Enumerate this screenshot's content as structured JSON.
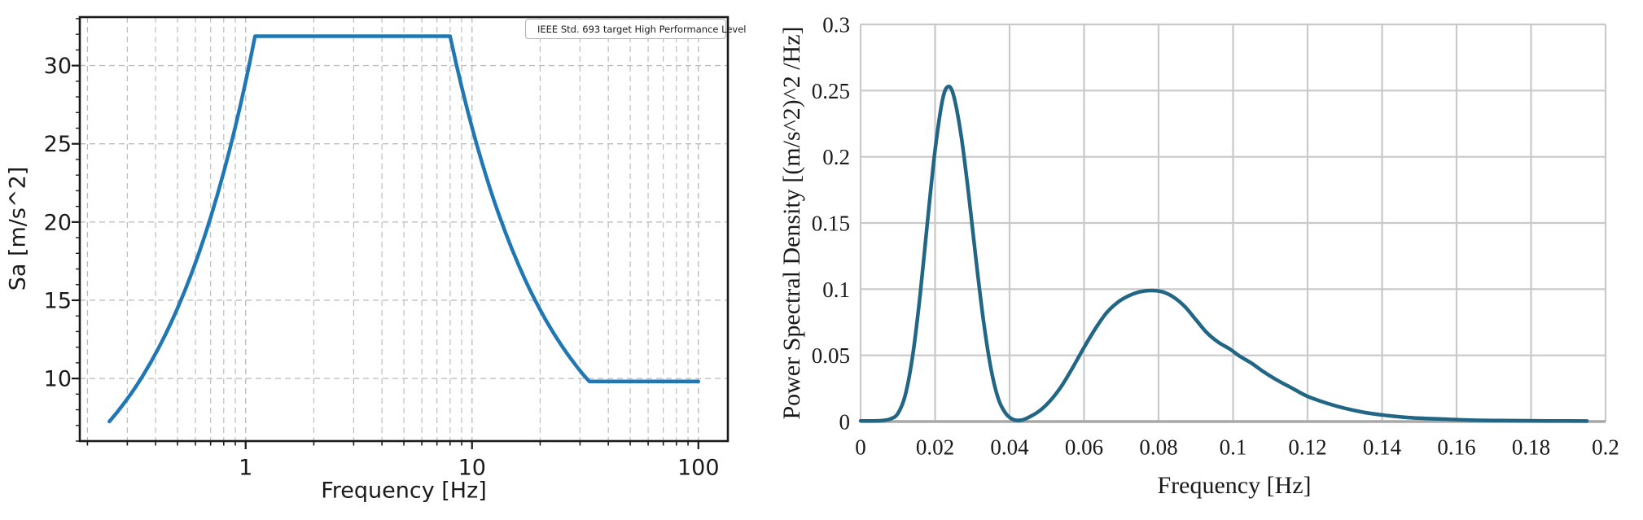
{
  "page": {
    "background": "#ffffff"
  },
  "chart_data": [
    {
      "type": "line",
      "title": "",
      "xlabel": "Frequency [Hz]",
      "ylabel": "Sa [m/s^2]",
      "x_scale": "log",
      "xlim": [
        0.185,
        135
      ],
      "ylim": [
        6.0,
        33.1
      ],
      "grid": "dashed",
      "grid_color": "#bdbdbd",
      "spine_color": "#1a1a1a",
      "legend_position": "upper-right",
      "x_major_ticks": [
        {
          "v": 1,
          "label": "1"
        },
        {
          "v": 10,
          "label": "10"
        },
        {
          "v": 100,
          "label": "100"
        }
      ],
      "x_minor_ticks": [
        0.2,
        0.3,
        0.4,
        0.5,
        0.6,
        0.7,
        0.8,
        0.9,
        2,
        3,
        4,
        5,
        6,
        7,
        8,
        9,
        20,
        30,
        40,
        50,
        60,
        70,
        80,
        90
      ],
      "y_ticks": [
        {
          "v": 10,
          "label": "10"
        },
        {
          "v": 15,
          "label": "15"
        },
        {
          "v": 20,
          "label": "20"
        },
        {
          "v": 25,
          "label": "25"
        },
        {
          "v": 30,
          "label": "30"
        }
      ],
      "y_minor_step": 1,
      "series": [
        {
          "name": "IEEE Std. 693 target High Performance Level",
          "color": "#1f77b4",
          "width": 4.5,
          "smooth": false,
          "points": [
            [
              0.25,
              7.25
            ],
            [
              0.27,
              7.83
            ],
            [
              0.29,
              8.41
            ],
            [
              0.31,
              8.98
            ],
            [
              0.33,
              9.56
            ],
            [
              0.35,
              10.14
            ],
            [
              0.38,
              11.01
            ],
            [
              0.41,
              11.88
            ],
            [
              0.44,
              12.75
            ],
            [
              0.47,
              13.62
            ],
            [
              0.5,
              14.49
            ],
            [
              0.54,
              15.65
            ],
            [
              0.58,
              16.81
            ],
            [
              0.62,
              17.97
            ],
            [
              0.66,
              19.13
            ],
            [
              0.7,
              20.29
            ],
            [
              0.75,
              21.74
            ],
            [
              0.8,
              23.19
            ],
            [
              0.85,
              24.63
            ],
            [
              0.9,
              26.08
            ],
            [
              0.95,
              27.53
            ],
            [
              1.0,
              28.98
            ],
            [
              1.05,
              30.43
            ],
            [
              1.1,
              31.88
            ],
            [
              8,
              31.88
            ],
            [
              8.5,
              30.16
            ],
            [
              9,
              28.64
            ],
            [
              9.5,
              27.27
            ],
            [
              10,
              26.05
            ],
            [
              10.5,
              24.94
            ],
            [
              11,
              23.93
            ],
            [
              11.5,
              23.01
            ],
            [
              12,
              22.16
            ],
            [
              12.5,
              21.38
            ],
            [
              13,
              20.67
            ],
            [
              14,
              19.39
            ],
            [
              15,
              18.28
            ],
            [
              16,
              17.31
            ],
            [
              17,
              16.45
            ],
            [
              18,
              15.68
            ],
            [
              19,
              15.0
            ],
            [
              20,
              14.39
            ],
            [
              21,
              13.83
            ],
            [
              22,
              13.33
            ],
            [
              23,
              12.87
            ],
            [
              24,
              12.45
            ],
            [
              25,
              12.06
            ],
            [
              26,
              11.7
            ],
            [
              27,
              11.37
            ],
            [
              28,
              11.06
            ],
            [
              29,
              10.77
            ],
            [
              30,
              10.5
            ],
            [
              31,
              10.25
            ],
            [
              32,
              10.02
            ],
            [
              33,
              9.81
            ],
            [
              100,
              9.81
            ]
          ]
        }
      ]
    },
    {
      "type": "line",
      "title": "",
      "xlabel": "Frequency [Hz]",
      "ylabel": "Power Spectral Density [(m/s^2)^2 /Hz]",
      "x_scale": "linear",
      "xlim": [
        0,
        0.2
      ],
      "ylim": [
        0,
        0.3
      ],
      "grid": "solid",
      "grid_color": "#c9c9c9",
      "baseline_color": "#a8a8a8",
      "x_major_ticks": [
        {
          "v": 0,
          "label": "0"
        },
        {
          "v": 0.02,
          "label": "0.02"
        },
        {
          "v": 0.04,
          "label": "0.04"
        },
        {
          "v": 0.06,
          "label": "0.06"
        },
        {
          "v": 0.08,
          "label": "0.08"
        },
        {
          "v": 0.1,
          "label": "0.1"
        },
        {
          "v": 0.12,
          "label": "0.12"
        },
        {
          "v": 0.14,
          "label": "0.14"
        },
        {
          "v": 0.16,
          "label": "0.16"
        },
        {
          "v": 0.18,
          "label": "0.18"
        },
        {
          "v": 0.2,
          "label": "0.2"
        }
      ],
      "y_ticks": [
        {
          "v": 0,
          "label": "0"
        },
        {
          "v": 0.05,
          "label": "0.05"
        },
        {
          "v": 0.1,
          "label": "0.1"
        },
        {
          "v": 0.15,
          "label": "0.15"
        },
        {
          "v": 0.2,
          "label": "0.2"
        },
        {
          "v": 0.25,
          "label": "0.25"
        },
        {
          "v": 0.3,
          "label": "0.3"
        }
      ],
      "series": [
        {
          "name": "Power spectral density",
          "color": "#216684",
          "width": 4.5,
          "smooth": true,
          "points": [
            [
              0,
              0.0005
            ],
            [
              0.004,
              0.0005
            ],
            [
              0.006,
              0.0008
            ],
            [
              0.008,
              0.002
            ],
            [
              0.01,
              0.006
            ],
            [
              0.012,
              0.02
            ],
            [
              0.014,
              0.05
            ],
            [
              0.016,
              0.096
            ],
            [
              0.018,
              0.152
            ],
            [
              0.02,
              0.205
            ],
            [
              0.022,
              0.243
            ],
            [
              0.0235,
              0.253
            ],
            [
              0.025,
              0.246
            ],
            [
              0.027,
              0.216
            ],
            [
              0.029,
              0.172
            ],
            [
              0.031,
              0.122
            ],
            [
              0.033,
              0.076
            ],
            [
              0.035,
              0.04
            ],
            [
              0.037,
              0.017
            ],
            [
              0.039,
              0.006
            ],
            [
              0.041,
              0.0015
            ],
            [
              0.043,
              0.001
            ],
            [
              0.045,
              0.003
            ],
            [
              0.048,
              0.008
            ],
            [
              0.051,
              0.016
            ],
            [
              0.054,
              0.027
            ],
            [
              0.057,
              0.041
            ],
            [
              0.06,
              0.056
            ],
            [
              0.063,
              0.07
            ],
            [
              0.066,
              0.082
            ],
            [
              0.069,
              0.09
            ],
            [
              0.072,
              0.095
            ],
            [
              0.075,
              0.098
            ],
            [
              0.078,
              0.099
            ],
            [
              0.081,
              0.098
            ],
            [
              0.084,
              0.094
            ],
            [
              0.087,
              0.087
            ],
            [
              0.09,
              0.077
            ],
            [
              0.093,
              0.067
            ],
            [
              0.096,
              0.06
            ],
            [
              0.099,
              0.055
            ],
            [
              0.102,
              0.049
            ],
            [
              0.105,
              0.044
            ],
            [
              0.108,
              0.038
            ],
            [
              0.112,
              0.031
            ],
            [
              0.116,
              0.025
            ],
            [
              0.12,
              0.019
            ],
            [
              0.125,
              0.014
            ],
            [
              0.13,
              0.01
            ],
            [
              0.135,
              0.007
            ],
            [
              0.14,
              0.005
            ],
            [
              0.147,
              0.003
            ],
            [
              0.155,
              0.002
            ],
            [
              0.165,
              0.001
            ],
            [
              0.175,
              0.0007
            ],
            [
              0.185,
              0.0005
            ],
            [
              0.195,
              0.0004
            ]
          ]
        }
      ]
    }
  ]
}
